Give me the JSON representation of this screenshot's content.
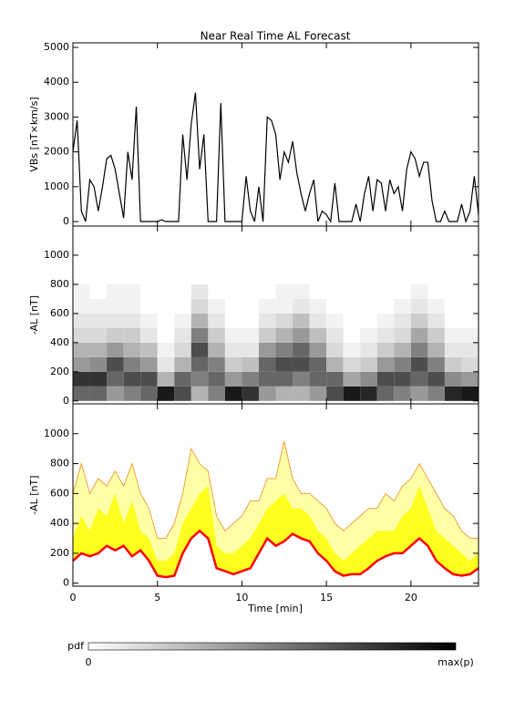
{
  "chart_data": [
    {
      "type": "line",
      "title": "Near Real Time AL Forecast",
      "ylabel": "VBs [nT×km/s]",
      "color": "#000000",
      "xlim": [
        0,
        24
      ],
      "ylim": [
        -130,
        5130
      ],
      "yticks": [
        0,
        1000,
        2000,
        3000,
        4000,
        5000
      ],
      "x": [
        0,
        0.25,
        0.5,
        0.75,
        1,
        1.25,
        1.5,
        1.75,
        2,
        2.25,
        2.5,
        2.75,
        3,
        3.25,
        3.5,
        3.75,
        4,
        4.25,
        4.5,
        4.75,
        5,
        5.25,
        5.5,
        5.75,
        6,
        6.25,
        6.5,
        6.75,
        7,
        7.25,
        7.5,
        7.75,
        8,
        8.25,
        8.5,
        8.75,
        9,
        9.25,
        9.5,
        9.75,
        10,
        10.25,
        10.5,
        10.75,
        11,
        11.25,
        11.5,
        11.75,
        12,
        12.25,
        12.5,
        12.75,
        13,
        13.25,
        13.5,
        13.75,
        14,
        14.25,
        14.5,
        14.75,
        15,
        15.25,
        15.5,
        15.75,
        16,
        16.25,
        16.5,
        16.75,
        17,
        17.25,
        17.5,
        17.75,
        18,
        18.25,
        18.5,
        18.75,
        19,
        19.25,
        19.5,
        19.75,
        20,
        20.25,
        20.5,
        20.75,
        21,
        21.25,
        21.5,
        21.75,
        22,
        22.25,
        22.5,
        22.75,
        23,
        23.25,
        23.5,
        23.75,
        24
      ],
      "values": [
        2000,
        2900,
        300,
        0,
        1200,
        1000,
        300,
        1000,
        1800,
        1900,
        1500,
        800,
        100,
        2000,
        1200,
        3300,
        0,
        0,
        0,
        0,
        0,
        50,
        0,
        0,
        0,
        0,
        2500,
        1200,
        2800,
        3700,
        1500,
        2500,
        0,
        0,
        0,
        3400,
        0,
        0,
        0,
        0,
        0,
        1300,
        300,
        0,
        1000,
        0,
        3000,
        2900,
        2500,
        1200,
        2000,
        1700,
        2300,
        1400,
        800,
        300,
        800,
        1200,
        0,
        300,
        200,
        0,
        1100,
        0,
        0,
        0,
        0,
        500,
        0,
        800,
        1300,
        300,
        1200,
        1100,
        300,
        1200,
        800,
        1000,
        300,
        1500,
        2000,
        1800,
        1300,
        1700,
        1700,
        600,
        0,
        0,
        300,
        0,
        0,
        0,
        500,
        0,
        300,
        1300,
        200
      ]
    },
    {
      "type": "heatmap",
      "ylabel": "-AL [nT]",
      "xlim": [
        0,
        24
      ],
      "ylim": [
        -20,
        1200
      ],
      "yticks": [
        0,
        200,
        400,
        600,
        800,
        1000
      ],
      "x_edges": [
        0,
        1,
        2,
        3,
        4,
        5,
        6,
        7,
        8,
        9,
        10,
        11,
        12,
        13,
        14,
        15,
        16,
        17,
        18,
        19,
        20,
        21,
        22,
        23,
        24
      ],
      "y_edges": [
        0,
        100,
        200,
        300,
        400,
        500,
        600,
        700,
        800
      ],
      "values": [
        [
          0.6,
          0.8,
          0.4,
          0.3,
          0.15,
          0.1,
          0.05,
          0.05
        ],
        [
          0.6,
          0.8,
          0.45,
          0.3,
          0.15,
          0.1,
          0.05,
          0
        ],
        [
          0.4,
          0.6,
          0.7,
          0.4,
          0.2,
          0.1,
          0.05,
          0.05
        ],
        [
          0.5,
          0.7,
          0.5,
          0.3,
          0.2,
          0.1,
          0.05,
          0.05
        ],
        [
          0.6,
          0.7,
          0.4,
          0.25,
          0.1,
          0.05,
          0,
          0
        ],
        [
          0.9,
          0.3,
          0.1,
          0.05,
          0,
          0,
          0,
          0
        ],
        [
          0.7,
          0.6,
          0.3,
          0.15,
          0.1,
          0.05,
          0,
          0
        ],
        [
          0.3,
          0.5,
          0.6,
          0.7,
          0.5,
          0.3,
          0.15,
          0.1
        ],
        [
          0.5,
          0.6,
          0.5,
          0.3,
          0.2,
          0.1,
          0.05,
          0
        ],
        [
          0.9,
          0.4,
          0.2,
          0.1,
          0.05,
          0,
          0,
          0
        ],
        [
          0.8,
          0.5,
          0.25,
          0.1,
          0.05,
          0,
          0,
          0
        ],
        [
          0.4,
          0.6,
          0.6,
          0.4,
          0.2,
          0.1,
          0.05,
          0
        ],
        [
          0.3,
          0.6,
          0.7,
          0.5,
          0.3,
          0.15,
          0.05,
          0.05
        ],
        [
          0.3,
          0.5,
          0.7,
          0.6,
          0.4,
          0.25,
          0.1,
          0.05
        ],
        [
          0.4,
          0.6,
          0.6,
          0.4,
          0.25,
          0.1,
          0.05,
          0
        ],
        [
          0.7,
          0.6,
          0.3,
          0.15,
          0.1,
          0.05,
          0,
          0
        ],
        [
          0.9,
          0.35,
          0.15,
          0.05,
          0,
          0,
          0,
          0
        ],
        [
          0.85,
          0.45,
          0.2,
          0.1,
          0.05,
          0,
          0,
          0
        ],
        [
          0.6,
          0.7,
          0.4,
          0.2,
          0.1,
          0.05,
          0,
          0
        ],
        [
          0.5,
          0.7,
          0.5,
          0.3,
          0.15,
          0.1,
          0.05,
          0
        ],
        [
          0.4,
          0.6,
          0.7,
          0.5,
          0.35,
          0.2,
          0.1,
          0.05
        ],
        [
          0.5,
          0.7,
          0.5,
          0.3,
          0.2,
          0.1,
          0.05,
          0
        ],
        [
          0.85,
          0.45,
          0.2,
          0.1,
          0.05,
          0,
          0,
          0
        ],
        [
          0.9,
          0.4,
          0.15,
          0.1,
          0.05,
          0,
          0,
          0
        ]
      ]
    },
    {
      "type": "band",
      "ylabel": "-AL [nT]",
      "xlabel": "Time [min]",
      "xlim": [
        0,
        24
      ],
      "ylim": [
        -20,
        1200
      ],
      "yticks": [
        0,
        200,
        400,
        600,
        800,
        1000
      ],
      "xticks": [
        0,
        5,
        10,
        15,
        20
      ],
      "x": [
        0,
        0.5,
        1,
        1.5,
        2,
        2.5,
        3,
        3.5,
        4,
        4.5,
        5,
        5.5,
        6,
        6.5,
        7,
        7.5,
        8,
        8.5,
        9,
        9.5,
        10,
        10.5,
        11,
        11.5,
        12,
        12.5,
        13,
        13.5,
        14,
        14.5,
        15,
        15.5,
        16,
        16.5,
        17,
        17.5,
        18,
        18.5,
        19,
        19.5,
        20,
        20.5,
        21,
        21.5,
        22,
        22.5,
        23,
        23.5,
        24
      ],
      "series": [
        {
          "fill": "#ffffa8",
          "line_color": "#f0a040",
          "values": [
            600,
            800,
            600,
            700,
            650,
            750,
            650,
            800,
            600,
            500,
            300,
            300,
            400,
            600,
            900,
            800,
            750,
            450,
            350,
            400,
            450,
            550,
            550,
            700,
            700,
            950,
            700,
            600,
            600,
            550,
            500,
            400,
            350,
            400,
            450,
            500,
            500,
            600,
            550,
            650,
            700,
            800,
            700,
            600,
            500,
            450,
            350,
            300,
            300
          ]
        },
        {
          "fill": "#ffff20",
          "values": [
            300,
            450,
            350,
            500,
            450,
            600,
            400,
            550,
            350,
            300,
            150,
            150,
            200,
            400,
            500,
            600,
            650,
            250,
            200,
            200,
            250,
            300,
            400,
            500,
            550,
            600,
            500,
            500,
            450,
            350,
            300,
            200,
            150,
            200,
            250,
            300,
            350,
            350,
            350,
            450,
            500,
            650,
            500,
            350,
            300,
            250,
            200,
            150,
            200
          ]
        },
        {
          "fill": "#ffffff",
          "line_color": "#ff0000",
          "values": [
            150,
            200,
            180,
            200,
            250,
            220,
            250,
            180,
            220,
            150,
            50,
            40,
            50,
            200,
            300,
            350,
            300,
            100,
            80,
            60,
            80,
            100,
            200,
            300,
            250,
            280,
            330,
            300,
            280,
            200,
            150,
            80,
            50,
            60,
            60,
            100,
            150,
            180,
            200,
            200,
            250,
            300,
            250,
            150,
            100,
            60,
            50,
            60,
            100
          ]
        }
      ]
    }
  ],
  "colorbar": {
    "label": "pdf",
    "min_label": "0",
    "max_label": "max(p)"
  }
}
